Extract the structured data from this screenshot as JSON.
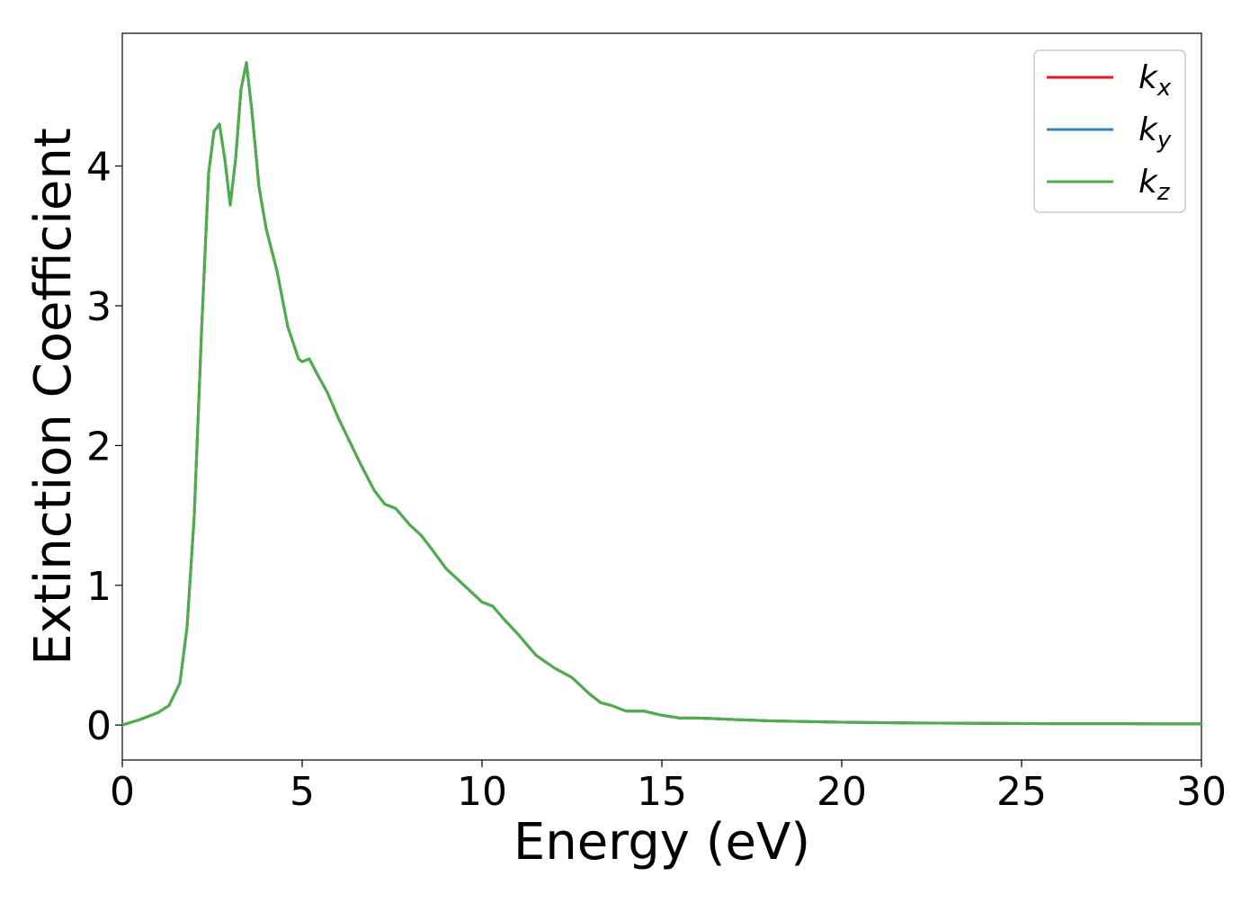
{
  "chart_data": {
    "type": "line",
    "title": "",
    "xlabel": "Energy (eV)",
    "ylabel": "Extinction Coefficient",
    "xlim": [
      0,
      30
    ],
    "ylim": [
      -0.25,
      4.95
    ],
    "xticks": [
      0,
      5,
      10,
      15,
      20,
      25,
      30
    ],
    "xtick_labels": [
      "0",
      "5",
      "10",
      "15",
      "20",
      "25",
      "30"
    ],
    "yticks": [
      0,
      1,
      2,
      3,
      4
    ],
    "ytick_labels": [
      "0",
      "1",
      "2",
      "3",
      "4"
    ],
    "grid": false,
    "legend_position": "top-right",
    "series": [
      {
        "name": "k",
        "subscript": "x",
        "color": "#e41a1c"
      },
      {
        "name": "k",
        "subscript": "y",
        "color": "#377eb8"
      },
      {
        "name": "k",
        "subscript": "z",
        "color": "#4daf4a"
      }
    ],
    "x": [
      0,
      0.5,
      1.0,
      1.3,
      1.6,
      1.8,
      2.0,
      2.2,
      2.4,
      2.55,
      2.7,
      2.85,
      3.0,
      3.15,
      3.3,
      3.45,
      3.6,
      3.8,
      4.0,
      4.3,
      4.6,
      4.9,
      5.0,
      5.2,
      5.4,
      5.7,
      6.0,
      6.3,
      6.6,
      7.0,
      7.3,
      7.6,
      8.0,
      8.3,
      8.6,
      9.0,
      9.5,
      10.0,
      10.3,
      10.6,
      11.0,
      11.5,
      12.0,
      12.5,
      13.0,
      13.3,
      13.6,
      14.0,
      14.5,
      15.0,
      15.5,
      16.0,
      16.5,
      17.0,
      18.0,
      19.0,
      20.0,
      22.0,
      24.0,
      26.0,
      28.0,
      29.0,
      30.0
    ],
    "y": [
      0.0,
      0.04,
      0.09,
      0.14,
      0.3,
      0.7,
      1.5,
      2.8,
      3.95,
      4.25,
      4.3,
      4.05,
      3.72,
      4.05,
      4.55,
      4.74,
      4.4,
      3.85,
      3.55,
      3.25,
      2.85,
      2.62,
      2.6,
      2.62,
      2.52,
      2.38,
      2.2,
      2.04,
      1.88,
      1.68,
      1.58,
      1.55,
      1.43,
      1.36,
      1.26,
      1.12,
      1.0,
      0.88,
      0.85,
      0.76,
      0.65,
      0.5,
      0.41,
      0.34,
      0.22,
      0.16,
      0.14,
      0.1,
      0.1,
      0.07,
      0.05,
      0.05,
      0.045,
      0.04,
      0.03,
      0.025,
      0.02,
      0.015,
      0.012,
      0.01,
      0.01,
      0.008,
      0.008
    ]
  }
}
